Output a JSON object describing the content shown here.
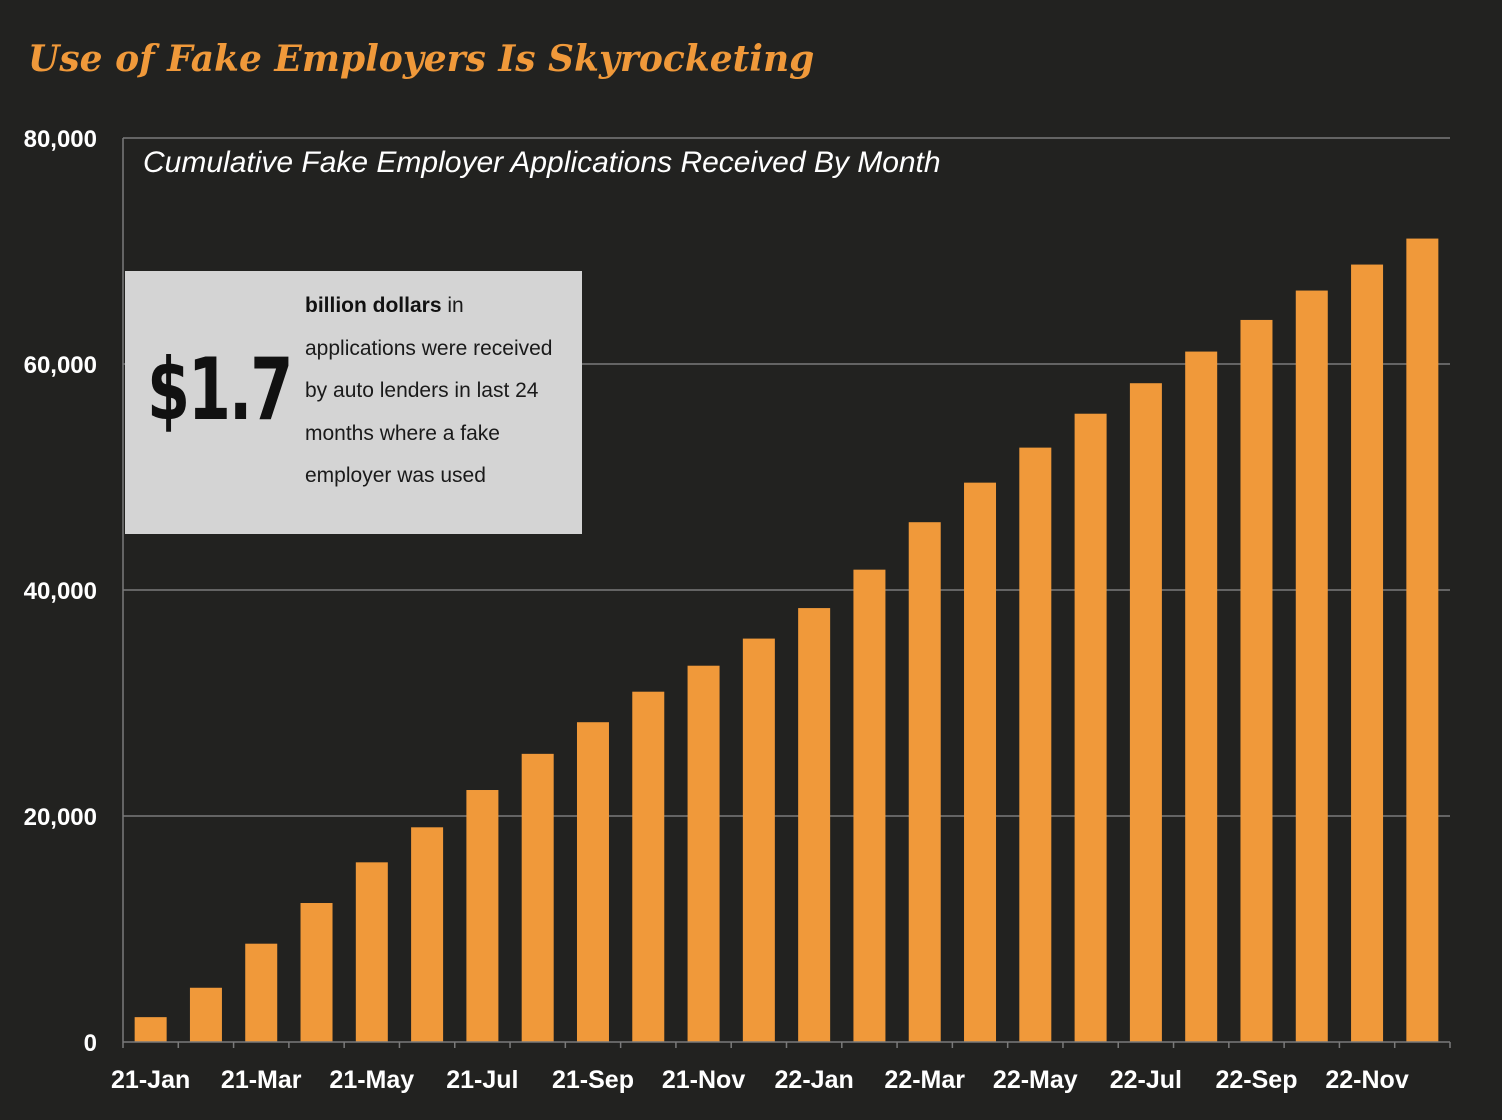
{
  "title": "Use of Fake Employers Is Skyrocketing",
  "callout": {
    "amount": "$1.7",
    "bold_text": "billion dollars",
    "rest_text": " in applications were received by auto lenders in last 24 months where a fake employer was used"
  },
  "colors": {
    "background": "#222220",
    "bar": "#f0993a",
    "title": "#f0993a",
    "gridline": "#7a7a7a",
    "callout_bg": "#d4d4d4"
  },
  "chart_data": {
    "type": "bar",
    "title": "Cumulative Fake Employer Applications Received By Month",
    "xlabel": "",
    "ylabel": "",
    "ylim": [
      0,
      80000
    ],
    "yticks": [
      0,
      20000,
      40000,
      60000,
      80000
    ],
    "ytick_labels": [
      "0",
      "20,000",
      "40,000",
      "60,000",
      "80,000"
    ],
    "categories": [
      "21-Jan",
      "21-Feb",
      "21-Mar",
      "21-Apr",
      "21-May",
      "21-Jun",
      "21-Jul",
      "21-Aug",
      "21-Sep",
      "21-Oct",
      "21-Nov",
      "21-Dec",
      "22-Jan",
      "22-Feb",
      "22-Mar",
      "22-Apr",
      "22-May",
      "22-Jun",
      "22-Jul",
      "22-Aug",
      "22-Sep",
      "22-Oct",
      "22-Nov",
      "22-Dec"
    ],
    "xtick_labels": [
      "21-Jan",
      "21-Mar",
      "21-May",
      "21-Jul",
      "21-Sep",
      "21-Nov",
      "22-Jan",
      "22-Mar",
      "22-May",
      "22-Jul",
      "22-Sep",
      "22-Nov"
    ],
    "values": [
      2200,
      4800,
      8700,
      12300,
      15900,
      19000,
      22300,
      25500,
      28300,
      31000,
      33300,
      35700,
      38400,
      41800,
      46000,
      49500,
      52600,
      55600,
      58300,
      61100,
      63900,
      66500,
      68800,
      71100
    ],
    "grid": true
  }
}
